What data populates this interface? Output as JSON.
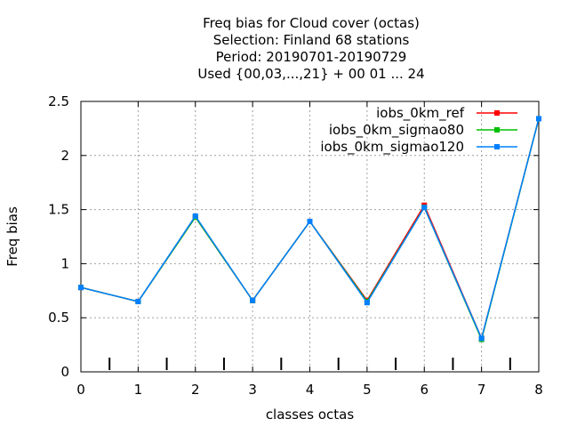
{
  "chart_data": {
    "type": "line",
    "title_lines": [
      "Freq bias  for Cloud cover (octas)",
      "Selection: Finland     68 stations",
      "Period: 20190701-20190729",
      "Used {00,03,...,21} + 00 01 ... 24"
    ],
    "xlabel": "classes octas",
    "ylabel": "Freq bias",
    "x": [
      0,
      1,
      2,
      3,
      4,
      5,
      6,
      7,
      8
    ],
    "xlim": [
      0,
      8
    ],
    "ylim": [
      0,
      2.5
    ],
    "x_ticks": [
      "0",
      "1",
      "2",
      "3",
      "4",
      "5",
      "6",
      "7",
      "8"
    ],
    "y_ticks": [
      "0",
      "0.5",
      "1",
      "1.5",
      "2",
      "2.5"
    ],
    "grid": true,
    "legend_position": "top-right",
    "series": [
      {
        "name": "iobs_0km_ref",
        "color": "#ff0000",
        "values": [
          0.78,
          0.65,
          1.43,
          0.66,
          1.39,
          0.66,
          1.54,
          0.31,
          2.34
        ]
      },
      {
        "name": "iobs_0km_sigmao80",
        "color": "#00c000",
        "values": [
          0.78,
          0.65,
          1.43,
          0.66,
          1.39,
          0.65,
          1.52,
          0.3,
          2.34
        ]
      },
      {
        "name": "iobs_0km_sigmao120",
        "color": "#0080ff",
        "values": [
          0.78,
          0.65,
          1.44,
          0.66,
          1.39,
          0.64,
          1.52,
          0.31,
          2.34
        ]
      }
    ]
  }
}
